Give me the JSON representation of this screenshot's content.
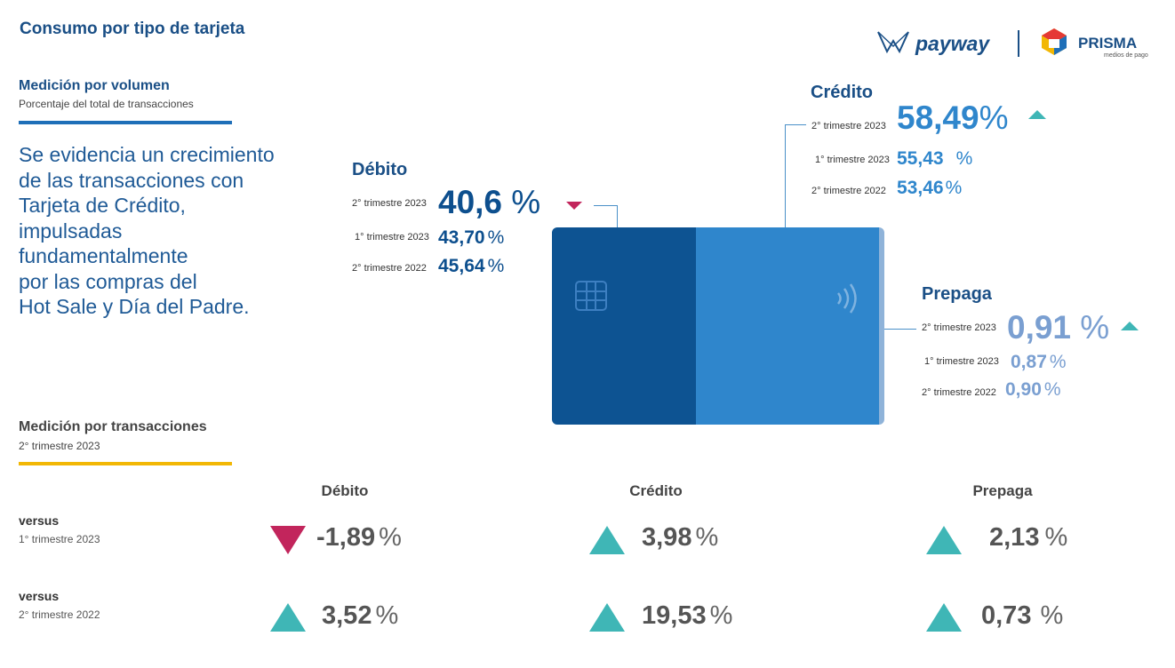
{
  "header": {
    "title": "Consumo por tipo de tarjeta",
    "brand_payway": "payway",
    "brand_prisma": "PRISMA",
    "brand_prisma_sub": "medios de pago"
  },
  "volume_section": {
    "title": "Medición por volumen",
    "subtitle": "Porcentaje del total de transacciones",
    "headline": "Se evidencia un crecimiento de las transacciones con Tarjeta de Crédito, impulsadas fundamentalmente por las compras del Hot Sale y Día del Padre.",
    "headline_lines": [
      "Se evidencia un crecimiento",
      "de las transacciones con",
      "Tarjeta de Crédito,",
      "impulsadas",
      "fundamentalmente",
      "por las compras del",
      "Hot Sale y Día del Padre."
    ]
  },
  "transactions_section": {
    "title": "Medición por transacciones",
    "subtitle": "2° trimestre 2023"
  },
  "colors": {
    "up": "#3fb6b6",
    "down": "#c2255c",
    "card_dark": "#0d5392",
    "card_light": "#2f86cc",
    "accent_blue_rule": "#1f6fb8",
    "accent_yellow_rule": "#f2b705"
  },
  "chart_data": [
    {
      "type": "table",
      "title": "Medición por volumen",
      "subtitle": "Porcentaje del total de transacciones",
      "series": [
        {
          "name": "Débito",
          "trend": "down",
          "rows": [
            {
              "label": "2° trimestre 2023",
              "value": "40,6",
              "unit": "%"
            },
            {
              "label": "1° trimestre 2023",
              "value": "43,70",
              "unit": "%"
            },
            {
              "label": "2° trimestre 2022",
              "value": "45,64",
              "unit": "%"
            }
          ]
        },
        {
          "name": "Crédito",
          "trend": "up",
          "rows": [
            {
              "label": "2° trimestre 2023",
              "value": "58,49",
              "unit": "%"
            },
            {
              "label": "1° trimestre 2023",
              "value": "55,43",
              "unit": "%"
            },
            {
              "label": "2° trimestre 2022",
              "value": "53,46",
              "unit": "%"
            }
          ]
        },
        {
          "name": "Prepaga",
          "trend": "up",
          "rows": [
            {
              "label": "2° trimestre 2023",
              "value": "0,91",
              "unit": "%"
            },
            {
              "label": "1° trimestre 2023",
              "value": "0,87",
              "unit": "%"
            },
            {
              "label": "2° trimestre 2022",
              "value": "0,90",
              "unit": "%"
            }
          ]
        }
      ]
    },
    {
      "type": "table",
      "title": "Medición por transacciones",
      "subtitle": "2° trimestre 2023",
      "columns": [
        "Débito",
        "Crédito",
        "Prepaga"
      ],
      "rows": [
        {
          "label": "versus",
          "sublabel": "1° trimestre 2023",
          "cells": [
            {
              "value": "-1,89",
              "unit": "%",
              "trend": "down"
            },
            {
              "value": "3,98",
              "unit": "%",
              "trend": "up"
            },
            {
              "value": "2,13",
              "unit": "%",
              "trend": "up"
            }
          ]
        },
        {
          "label": "versus",
          "sublabel": "2° trimestre 2022",
          "cells": [
            {
              "value": "3,52",
              "unit": "%",
              "trend": "up"
            },
            {
              "value": "19,53",
              "unit": "%",
              "trend": "up"
            },
            {
              "value": "0,73",
              "unit": "%",
              "trend": "up"
            }
          ]
        }
      ]
    }
  ]
}
